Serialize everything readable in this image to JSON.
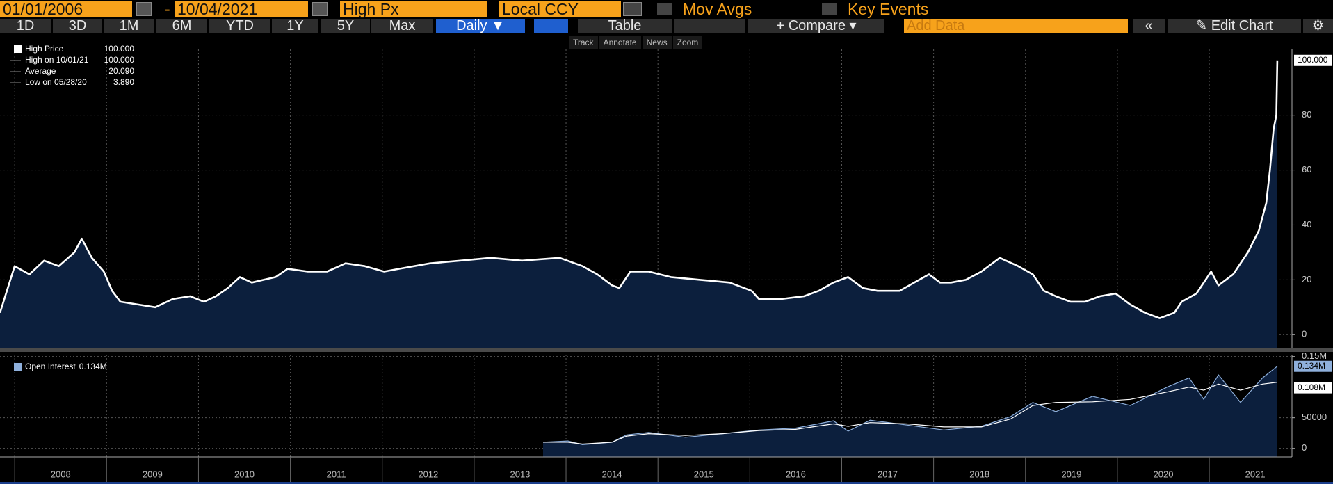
{
  "toolbar": {
    "start_date": "01/01/2006",
    "separator": "-",
    "end_date": "10/04/2021",
    "field": "High Px",
    "currency": "Local CCY",
    "mov_avgs": "Mov Avgs",
    "key_events": "Key Events"
  },
  "buttons": {
    "periods": [
      "1D",
      "3D",
      "1M",
      "6M",
      "YTD",
      "1Y",
      "5Y",
      "Max"
    ],
    "frequency": "Daily",
    "table": "Table",
    "compare": "Compare",
    "add_data": "Add Data",
    "edit_chart": "Edit Chart"
  },
  "tools": [
    "Track",
    "Annotate",
    "News",
    "Zoom"
  ],
  "chart_data": [
    {
      "type": "line",
      "grid": true,
      "xlim": [
        2007.84,
        2021.9
      ],
      "xticks": [
        2008,
        2009,
        2010,
        2011,
        2012,
        2013,
        2014,
        2015,
        2016,
        2017,
        2018,
        2019,
        2020,
        2021
      ],
      "ylim": [
        -5,
        104
      ],
      "yticks": [
        0,
        20,
        40,
        60,
        80
      ],
      "stats": [
        {
          "label": "High on 10/01/21",
          "value": "100.000"
        },
        {
          "label": "Average",
          "value": "20.090"
        },
        {
          "label": "Low on 05/28/20",
          "value": "3.890"
        }
      ],
      "x": [
        2007.84,
        2008.0,
        2008.16,
        2008.32,
        2008.48,
        2008.65,
        2008.73,
        2008.84,
        2008.97,
        2009.06,
        2009.15,
        2009.34,
        2009.53,
        2009.72,
        2009.91,
        2010.06,
        2010.19,
        2010.32,
        2010.45,
        2010.58,
        2010.84,
        2010.97,
        2011.19,
        2011.4,
        2011.6,
        2011.81,
        2012.02,
        2012.18,
        2012.52,
        2012.85,
        2013.18,
        2013.52,
        2013.93,
        2014.18,
        2014.34,
        2014.5,
        2014.58,
        2014.7,
        2014.9,
        2015.14,
        2015.46,
        2015.78,
        2016.02,
        2016.1,
        2016.34,
        2016.59,
        2016.75,
        2016.91,
        2017.07,
        2017.23,
        2017.39,
        2017.63,
        2017.79,
        2017.95,
        2018.07,
        2018.19,
        2018.35,
        2018.52,
        2018.72,
        2018.92,
        2019.08,
        2019.2,
        2019.33,
        2019.49,
        2019.65,
        2019.81,
        2019.98,
        2020.14,
        2020.3,
        2020.46,
        2020.62,
        2020.7,
        2020.86,
        2021.02,
        2021.1,
        2021.26,
        2021.42,
        2021.54,
        2021.62,
        2021.66,
        2021.7,
        2021.73,
        2021.74
      ],
      "series": [
        {
          "name": "High Price",
          "color": "#ffffff",
          "fill": "#0c1f3d",
          "values": [
            8,
            25,
            22,
            27,
            25,
            30,
            35,
            28,
            23,
            16,
            12,
            11,
            10,
            13,
            14,
            12,
            14,
            17,
            21,
            19,
            21,
            24,
            23,
            23,
            26,
            25,
            23,
            24,
            26,
            27,
            28,
            27,
            28,
            25,
            22,
            18,
            17,
            23,
            23,
            21,
            20,
            19,
            16,
            13,
            13,
            14,
            16,
            19,
            21,
            17,
            16,
            16,
            19,
            22,
            19,
            19,
            20,
            23,
            28,
            25,
            22,
            16,
            14,
            12,
            12,
            14,
            15,
            11,
            8,
            6,
            8,
            12,
            15,
            23,
            18,
            22,
            30,
            38,
            48,
            60,
            75,
            80,
            100
          ],
          "value_labels": [
            null,
            null,
            null,
            null,
            null,
            null,
            null,
            null,
            null,
            null,
            null,
            null,
            null,
            null,
            null,
            null,
            null,
            null,
            null,
            null,
            null,
            null,
            null,
            null,
            null,
            null,
            null,
            null,
            null,
            null,
            null,
            null,
            null,
            null,
            null,
            null,
            null,
            null,
            null,
            null,
            null,
            null,
            null,
            null,
            null,
            null,
            null,
            null,
            null,
            null,
            null,
            null,
            null,
            null,
            null,
            null,
            null,
            null,
            null,
            null,
            null,
            null,
            null,
            null,
            null,
            null,
            null,
            null,
            null,
            null,
            null,
            null,
            null,
            null,
            null,
            null,
            null,
            null,
            null,
            null,
            null,
            null,
            "100.000"
          ]
        }
      ]
    },
    {
      "type": "line",
      "grid": true,
      "xlim": [
        2007.84,
        2021.9
      ],
      "xticks": [
        2008,
        2009,
        2010,
        2011,
        2012,
        2013,
        2014,
        2015,
        2016,
        2017,
        2018,
        2019,
        2020,
        2021
      ],
      "ylim": [
        -14000,
        153000
      ],
      "yticks": [
        0,
        50000,
        {
          "value": 150000,
          "label": "0.15M"
        }
      ],
      "x": [
        2013.75,
        2014.02,
        2014.18,
        2014.5,
        2014.66,
        2014.9,
        2015.3,
        2015.7,
        2016.1,
        2016.5,
        2016.91,
        2017.07,
        2017.31,
        2017.71,
        2018.11,
        2018.52,
        2018.84,
        2019.08,
        2019.33,
        2019.73,
        2020.14,
        2020.54,
        2020.78,
        2020.94,
        2021.1,
        2021.34,
        2021.58,
        2021.74
      ],
      "series": [
        {
          "name": "Open Interest",
          "color": "#8fb0dc",
          "fill": "#0c1f3d",
          "values": [
            10000,
            12000,
            6000,
            10000,
            22000,
            26000,
            18000,
            24000,
            30000,
            33000,
            45000,
            28000,
            46000,
            38000,
            30000,
            36000,
            52000,
            75000,
            60000,
            85000,
            70000,
            100000,
            115000,
            80000,
            120000,
            75000,
            115000,
            134000
          ],
          "value_labels": [
            null,
            null,
            null,
            null,
            null,
            null,
            null,
            null,
            null,
            null,
            null,
            null,
            null,
            null,
            null,
            null,
            null,
            null,
            null,
            null,
            null,
            null,
            null,
            null,
            null,
            null,
            null,
            "0.134M"
          ]
        },
        {
          "color": "#ffffff",
          "values": [
            10000,
            10000,
            7000,
            10000,
            20000,
            24000,
            21000,
            24000,
            29000,
            31000,
            40000,
            36000,
            42000,
            40000,
            35000,
            35000,
            48000,
            70000,
            75000,
            76000,
            80000,
            92000,
            100000,
            95000,
            105000,
            95000,
            105000,
            108000
          ],
          "value_labels": [
            null,
            null,
            null,
            null,
            null,
            null,
            null,
            null,
            null,
            null,
            null,
            null,
            null,
            null,
            null,
            null,
            null,
            null,
            null,
            null,
            null,
            null,
            null,
            null,
            null,
            null,
            null,
            "0.108M"
          ]
        }
      ]
    }
  ]
}
